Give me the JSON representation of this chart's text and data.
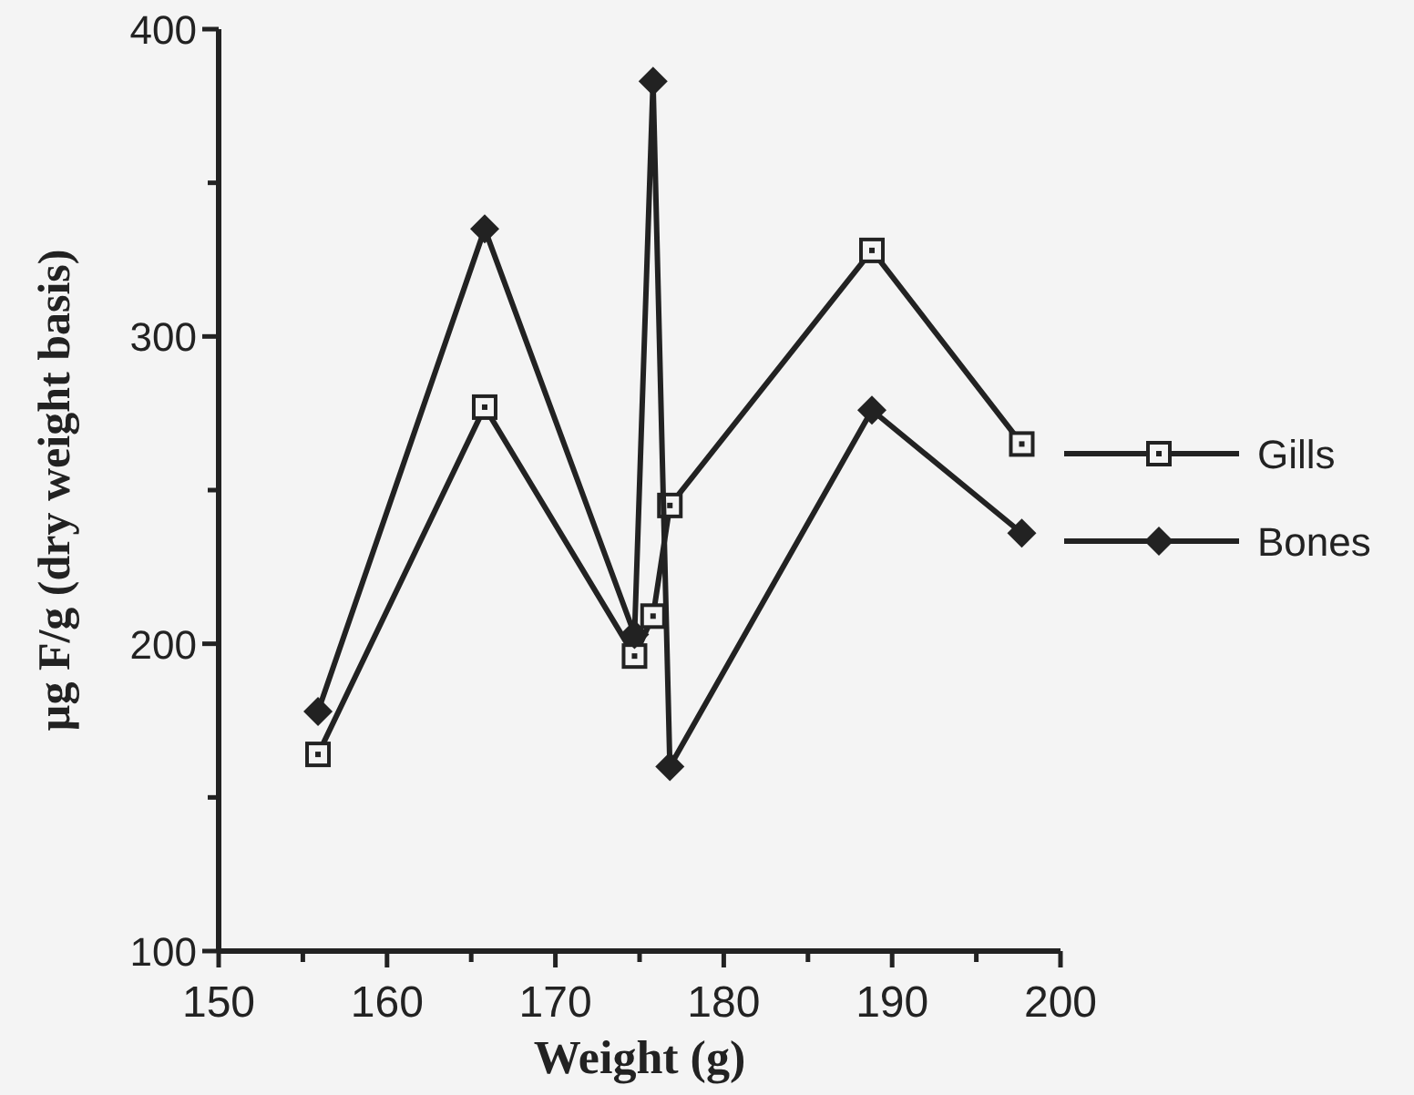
{
  "chart_data": {
    "type": "line",
    "xlabel": "Weight (g)",
    "ylabel": "µg F/g (dry weight basis)",
    "xlim": [
      150,
      200
    ],
    "xticks": [
      150,
      {
        "value": 155,
        "label": null
      },
      160,
      {
        "value": 165,
        "label": null
      },
      170,
      {
        "value": 175,
        "label": null
      },
      180,
      {
        "value": 185,
        "label": null
      },
      190,
      {
        "value": 195,
        "label": null
      },
      200
    ],
    "ylim": [
      100,
      400
    ],
    "yticks": [
      100,
      {
        "value": 150,
        "label": null
      },
      200,
      {
        "value": 250,
        "label": null
      },
      300,
      {
        "value": 350,
        "label": null
      },
      400
    ],
    "x": [
      155.9,
      165.8,
      174.7,
      175.8,
      176.8,
      188.8,
      197.7
    ],
    "series": [
      {
        "name": "Gills",
        "color": "#222222",
        "marker": "square",
        "values": [
          164,
          277,
          196,
          209,
          245,
          328,
          265
        ]
      },
      {
        "name": "Bones",
        "color": "#222222",
        "marker": "diamond",
        "values": [
          178,
          335,
          203,
          383,
          160,
          276,
          236
        ]
      }
    ],
    "legend": "right",
    "grid": false,
    "line_style": "solid"
  }
}
